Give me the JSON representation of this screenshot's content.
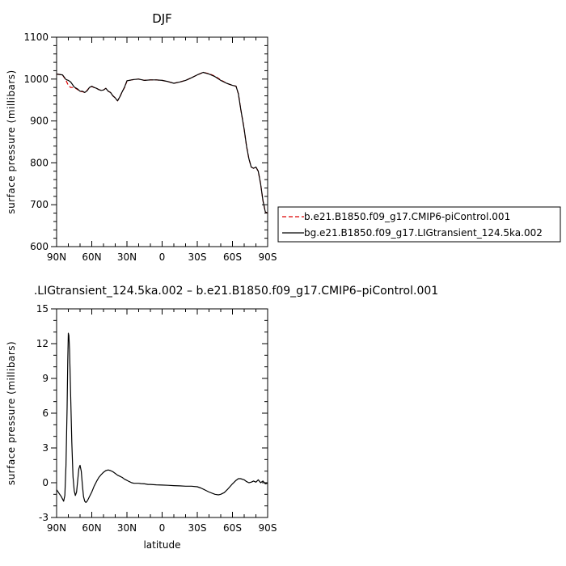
{
  "chart_data": [
    {
      "type": "line",
      "title": "DJF",
      "xlabel": "",
      "ylabel": "surface pressure (millibars)",
      "x_ticks": [
        "90N",
        "60N",
        "30N",
        "0",
        "30S",
        "60S",
        "90S"
      ],
      "x_tick_values": [
        90,
        60,
        30,
        0,
        -30,
        -60,
        -90
      ],
      "xlim": [
        90,
        -90
      ],
      "ylim": [
        600,
        1100
      ],
      "y_ticks": [
        "600",
        "700",
        "800",
        "900",
        "1000",
        "1100"
      ],
      "y_tick_values": [
        600,
        700,
        800,
        900,
        1000,
        1100
      ],
      "grid": false,
      "legend": "right",
      "series": [
        {
          "name": "b.e21.B1850.f09_g17.CMIP6-piControl.001",
          "color": "#dd0000",
          "dashed": true,
          "x": [
            90,
            85,
            82,
            80,
            78,
            75,
            72,
            70,
            68,
            66,
            64,
            62,
            60,
            58,
            56,
            54,
            52,
            50,
            48,
            46,
            44,
            42,
            40,
            38,
            36,
            34,
            32,
            30,
            28,
            26,
            24,
            20,
            15,
            10,
            5,
            0,
            -5,
            -10,
            -15,
            -20,
            -25,
            -30,
            -35,
            -40,
            -45,
            -50,
            -55,
            -60,
            -63,
            -65,
            -67,
            -70,
            -72,
            -74,
            -76,
            -78,
            -80,
            -82,
            -84,
            -86,
            -88,
            -90
          ],
          "y": [
            1012,
            1010,
            997,
            985,
            980,
            980,
            975,
            970,
            970,
            968,
            973,
            980,
            982,
            980,
            978,
            975,
            973,
            974,
            978,
            971,
            968,
            960,
            955,
            948,
            958,
            970,
            980,
            995,
            997,
            998,
            999,
            1000,
            997,
            998,
            998,
            997,
            994,
            990,
            993,
            997,
            1003,
            1010,
            1016,
            1013,
            1007,
            998,
            990,
            985,
            983,
            965,
            930,
            880,
            840,
            810,
            790,
            787,
            790,
            780,
            750,
            710,
            683,
            680
          ]
        },
        {
          "name": "bg.e21.B1850.f09_g17.LIGtransient_124.5ka.002",
          "color": "#000000",
          "dashed": false,
          "x": [
            90,
            85,
            82,
            80,
            78,
            75,
            72,
            70,
            68,
            66,
            64,
            62,
            60,
            58,
            56,
            54,
            52,
            50,
            48,
            46,
            44,
            42,
            40,
            38,
            36,
            34,
            32,
            30,
            28,
            26,
            24,
            20,
            15,
            10,
            5,
            0,
            -5,
            -10,
            -15,
            -20,
            -25,
            -30,
            -35,
            -40,
            -45,
            -50,
            -55,
            -60,
            -63,
            -65,
            -67,
            -70,
            -72,
            -74,
            -76,
            -78,
            -80,
            -82,
            -84,
            -86,
            -88,
            -90
          ],
          "y": [
            1012,
            1010,
            999,
            997,
            993,
            981,
            976,
            971,
            971,
            968,
            972,
            980,
            983,
            980,
            978,
            975,
            973,
            974,
            978,
            971,
            968,
            960,
            955,
            948,
            958,
            970,
            981,
            996,
            997,
            998,
            999,
            1000,
            997,
            998,
            998,
            997,
            994,
            990,
            993,
            997,
            1003,
            1010,
            1016,
            1012,
            1006,
            997,
            990,
            985,
            983,
            965,
            930,
            880,
            840,
            810,
            790,
            787,
            790,
            780,
            750,
            710,
            683,
            680
          ]
        }
      ]
    },
    {
      "type": "line",
      "title": ".LIGtransient_124.5ka.002 – b.e21.B1850.f09_g17.CMIP6–piControl.001",
      "xlabel": "latitude",
      "ylabel": "surface pressure (millibars)",
      "x_ticks": [
        "90N",
        "60N",
        "30N",
        "0",
        "30S",
        "60S",
        "90S"
      ],
      "x_tick_values": [
        90,
        60,
        30,
        0,
        -30,
        -60,
        -90
      ],
      "xlim": [
        90,
        -90
      ],
      "ylim": [
        -3,
        15
      ],
      "y_ticks": [
        "-3",
        "0",
        "3",
        "6",
        "9",
        "12",
        "15"
      ],
      "y_tick_values": [
        -3,
        0,
        3,
        6,
        9,
        12,
        15
      ],
      "grid": false,
      "series": [
        {
          "color": "#000000",
          "x": [
            90,
            88,
            86,
            84,
            83,
            82,
            81,
            80.5,
            80,
            79.5,
            79,
            78,
            77,
            76,
            75,
            74,
            73,
            72,
            71,
            70,
            69,
            68,
            67,
            66,
            65,
            64,
            63,
            62,
            60,
            58,
            56,
            54,
            52,
            50,
            48,
            46,
            44,
            42,
            40,
            38,
            36,
            34,
            32,
            30,
            28,
            26,
            24,
            22,
            20,
            18,
            15,
            12,
            10,
            5,
            0,
            -5,
            -10,
            -15,
            -20,
            -25,
            -30,
            -33,
            -36,
            -40,
            -45,
            -48,
            -50,
            -53,
            -56,
            -60,
            -63,
            -65,
            -67,
            -70,
            -72,
            -74,
            -76,
            -78,
            -80,
            -82,
            -84,
            -86,
            -88,
            -90
          ],
          "y": [
            -0.6,
            -0.9,
            -1.2,
            -1.6,
            -1.1,
            1.5,
            6.5,
            10.5,
            12.9,
            12.7,
            11.5,
            7.5,
            3.5,
            0.5,
            -0.7,
            -1.1,
            -0.8,
            0.2,
            1.2,
            1.5,
            1.0,
            -0.2,
            -1.2,
            -1.6,
            -1.7,
            -1.6,
            -1.4,
            -1.2,
            -0.8,
            -0.3,
            0.1,
            0.45,
            0.7,
            0.9,
            1.05,
            1.1,
            1.05,
            0.95,
            0.8,
            0.65,
            0.55,
            0.45,
            0.3,
            0.2,
            0.1,
            0.0,
            -0.05,
            -0.05,
            -0.05,
            -0.08,
            -0.1,
            -0.15,
            -0.15,
            -0.18,
            -0.2,
            -0.22,
            -0.25,
            -0.27,
            -0.3,
            -0.3,
            -0.35,
            -0.45,
            -0.6,
            -0.8,
            -1.0,
            -1.05,
            -1.0,
            -0.85,
            -0.55,
            -0.1,
            0.2,
            0.35,
            0.35,
            0.25,
            0.1,
            0.0,
            0.05,
            0.15,
            0.05,
            0.25,
            0.0,
            0.15,
            -0.1,
            -0.05
          ]
        }
      ]
    }
  ]
}
